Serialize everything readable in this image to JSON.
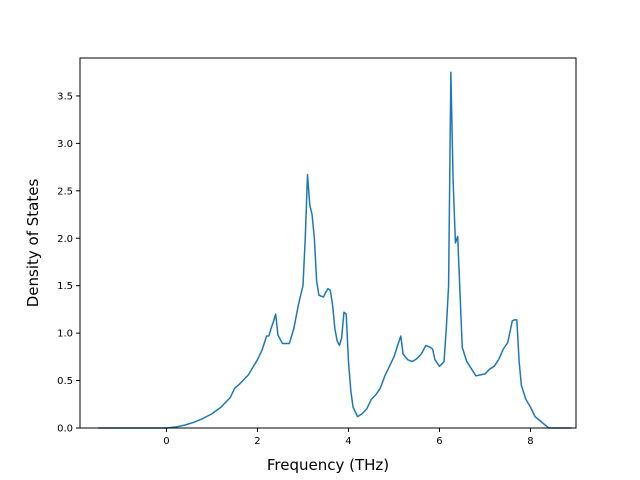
{
  "chart_data": {
    "type": "line",
    "title": "",
    "xlabel": "Frequency (THz)",
    "ylabel": "Density of States",
    "xlim": [
      -1.9,
      9.0
    ],
    "ylim": [
      0.0,
      3.9
    ],
    "xticks": [
      0,
      2,
      4,
      6,
      8
    ],
    "yticks": [
      0.0,
      0.5,
      1.0,
      1.5,
      2.0,
      2.5,
      3.0,
      3.5
    ],
    "xtick_labels": [
      "0",
      "2",
      "4",
      "6",
      "8"
    ],
    "ytick_labels": [
      "0.0",
      "0.5",
      "1.0",
      "1.5",
      "2.0",
      "2.5",
      "3.0",
      "3.5"
    ],
    "grid": false,
    "legend": "none",
    "line_color": "#1f77b4",
    "series": [
      {
        "x": [
          -1.5,
          -1.0,
          -0.5,
          0.0,
          0.2,
          0.4,
          0.6,
          0.8,
          1.0,
          1.2,
          1.4,
          1.5,
          1.6,
          1.8,
          2.0,
          2.1,
          2.2,
          2.25,
          2.3,
          2.35,
          2.4,
          2.45,
          2.55,
          2.7,
          2.8,
          2.9,
          3.0,
          3.05,
          3.1,
          3.15,
          3.2,
          3.25,
          3.3,
          3.35,
          3.45,
          3.5,
          3.55,
          3.6,
          3.65,
          3.7,
          3.75,
          3.8,
          3.85,
          3.9,
          3.95,
          4.0,
          4.05,
          4.1,
          4.2,
          4.3,
          4.4,
          4.5,
          4.6,
          4.7,
          4.8,
          5.0,
          5.1,
          5.15,
          5.2,
          5.3,
          5.4,
          5.5,
          5.6,
          5.7,
          5.75,
          5.8,
          5.85,
          5.9,
          6.0,
          6.1,
          6.15,
          6.2,
          6.25,
          6.3,
          6.35,
          6.4,
          6.5,
          6.6,
          6.8,
          6.9,
          7.0,
          7.1,
          7.2,
          7.3,
          7.4,
          7.5,
          7.6,
          7.65,
          7.7,
          7.75,
          7.8,
          7.9,
          8.0,
          8.1,
          8.4,
          8.9
        ],
        "y": [
          0.0,
          0.0,
          0.0,
          0.0,
          0.01,
          0.03,
          0.06,
          0.1,
          0.15,
          0.22,
          0.32,
          0.42,
          0.46,
          0.56,
          0.72,
          0.82,
          0.97,
          0.97,
          1.05,
          1.12,
          1.2,
          0.98,
          0.89,
          0.89,
          1.05,
          1.3,
          1.5,
          2.0,
          2.67,
          2.35,
          2.25,
          2.0,
          1.55,
          1.4,
          1.38,
          1.43,
          1.47,
          1.45,
          1.3,
          1.05,
          0.92,
          0.87,
          0.95,
          1.22,
          1.2,
          0.7,
          0.4,
          0.22,
          0.12,
          0.15,
          0.2,
          0.3,
          0.35,
          0.42,
          0.55,
          0.75,
          0.9,
          0.97,
          0.78,
          0.72,
          0.7,
          0.73,
          0.78,
          0.87,
          0.86,
          0.85,
          0.83,
          0.72,
          0.65,
          0.7,
          1.05,
          1.5,
          3.75,
          2.6,
          1.95,
          2.02,
          0.85,
          0.7,
          0.55,
          0.56,
          0.57,
          0.62,
          0.65,
          0.72,
          0.83,
          0.9,
          1.13,
          1.14,
          1.14,
          0.7,
          0.45,
          0.3,
          0.22,
          0.12,
          0.0,
          0.0
        ]
      }
    ]
  }
}
